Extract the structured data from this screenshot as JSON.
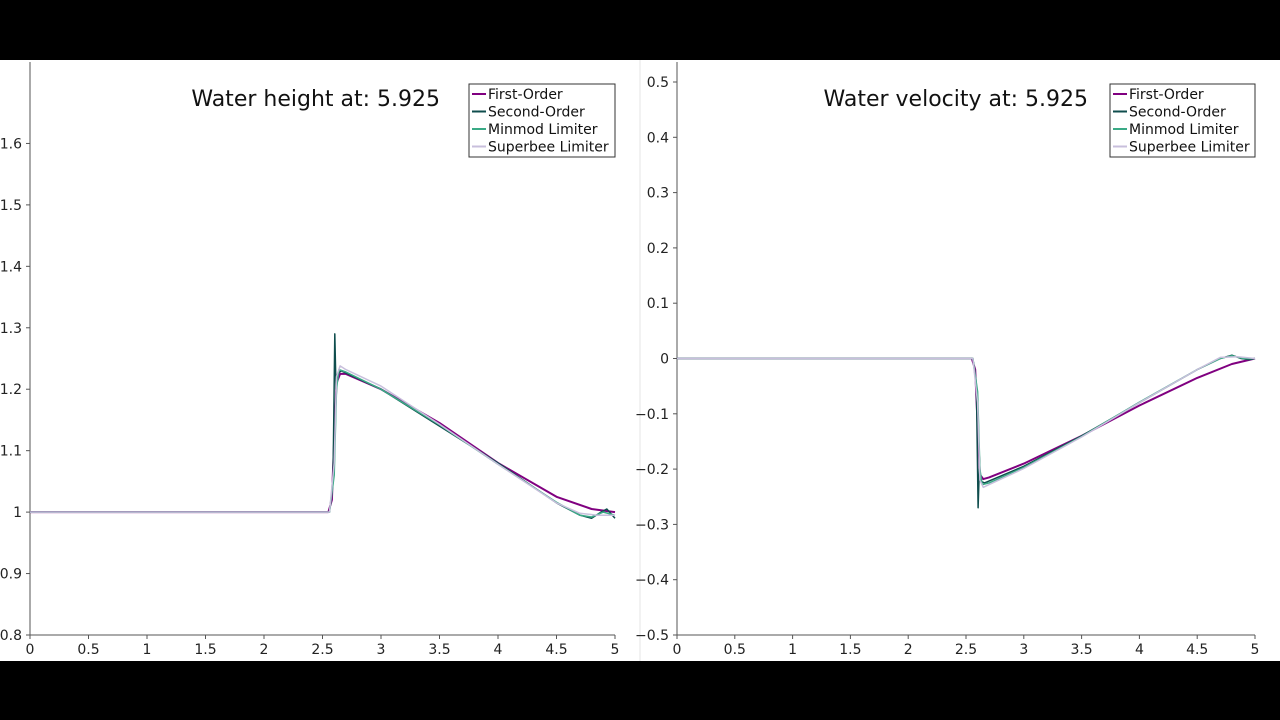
{
  "chart_data": [
    {
      "type": "line",
      "title": "Water height at: 5.925",
      "xlabel": "",
      "ylabel": "",
      "xlim": [
        0,
        5
      ],
      "ylim": [
        0.8,
        1.7
      ],
      "xticks": [
        "0",
        "0.5",
        "1",
        "1.5",
        "2",
        "2.5",
        "3",
        "3.5",
        "4",
        "4.5",
        "5"
      ],
      "yticks": [
        "0.8",
        "0.9",
        "1",
        "1.1",
        "1.2",
        "1.3",
        "1.4",
        "1.5",
        "1.6"
      ],
      "legend_position": "top-right",
      "grid": false,
      "series": [
        {
          "name": "First-Order",
          "color": "#800080",
          "x": [
            0,
            2.5,
            2.55,
            2.58,
            2.6,
            2.62,
            2.65,
            2.7,
            3.0,
            3.5,
            4.0,
            4.5,
            4.8,
            5.0
          ],
          "y": [
            1.0,
            1.0,
            1.0,
            1.02,
            1.12,
            1.21,
            1.225,
            1.225,
            1.2,
            1.145,
            1.08,
            1.025,
            1.005,
            1.0
          ]
        },
        {
          "name": "Second-Order",
          "color": "#0f4d4d",
          "x": [
            0,
            2.5,
            2.56,
            2.59,
            2.605,
            2.615,
            2.63,
            2.66,
            3.0,
            3.5,
            4.0,
            4.5,
            4.7,
            4.8,
            4.88,
            4.93,
            5.0
          ],
          "y": [
            1.0,
            1.0,
            1.0,
            1.05,
            1.29,
            1.2,
            1.225,
            1.23,
            1.2,
            1.14,
            1.08,
            1.015,
            0.995,
            0.99,
            1.0,
            1.005,
            0.99
          ]
        },
        {
          "name": "Minmod Limiter",
          "color": "#3aaa86",
          "x": [
            0,
            2.5,
            2.56,
            2.6,
            2.62,
            2.64,
            2.7,
            3.0,
            3.5,
            4.0,
            4.5,
            4.7,
            4.8,
            4.9,
            5.0
          ],
          "y": [
            1.0,
            1.0,
            1.0,
            1.06,
            1.2,
            1.232,
            1.228,
            1.2,
            1.142,
            1.078,
            1.016,
            0.995,
            0.992,
            1.0,
            0.995
          ]
        },
        {
          "name": "Superbee Limiter",
          "color": "#c8bfdc",
          "x": [
            0,
            2.5,
            2.56,
            2.6,
            2.62,
            2.65,
            2.7,
            3.0,
            3.5,
            4.0,
            4.5,
            4.7,
            4.85,
            5.0
          ],
          "y": [
            1.0,
            1.0,
            1.0,
            1.08,
            1.22,
            1.238,
            1.232,
            1.205,
            1.143,
            1.078,
            1.015,
            0.998,
            0.995,
            0.995
          ]
        }
      ]
    },
    {
      "type": "line",
      "title": "Water velocity at: 5.925",
      "xlabel": "",
      "ylabel": "",
      "xlim": [
        0,
        5
      ],
      "ylim": [
        -0.5,
        0.5
      ],
      "xticks": [
        "0",
        "0.5",
        "1",
        "1.5",
        "2",
        "2.5",
        "3",
        "3.5",
        "4",
        "4.5",
        "5"
      ],
      "yticks": [
        "−0.5",
        "−0.4",
        "−0.3",
        "−0.2",
        "−0.1",
        "0",
        "0.1",
        "0.2",
        "0.3",
        "0.4",
        "0.5"
      ],
      "legend_position": "top-right",
      "grid": false,
      "series": [
        {
          "name": "First-Order",
          "color": "#800080",
          "x": [
            0,
            2.5,
            2.55,
            2.58,
            2.6,
            2.62,
            2.65,
            2.7,
            3.0,
            3.5,
            4.0,
            4.5,
            4.8,
            5.0
          ],
          "y": [
            0.0,
            0.0,
            0.0,
            -0.02,
            -0.12,
            -0.21,
            -0.218,
            -0.215,
            -0.19,
            -0.14,
            -0.085,
            -0.035,
            -0.01,
            0.0
          ]
        },
        {
          "name": "Second-Order",
          "color": "#0f4d4d",
          "x": [
            0,
            2.5,
            2.56,
            2.59,
            2.605,
            2.615,
            2.63,
            2.66,
            3.0,
            3.5,
            4.0,
            4.5,
            4.7,
            4.8,
            4.88,
            4.95,
            5.0
          ],
          "y": [
            0.0,
            0.0,
            0.0,
            -0.05,
            -0.27,
            -0.2,
            -0.222,
            -0.225,
            -0.195,
            -0.14,
            -0.08,
            -0.02,
            0.0,
            0.006,
            0.0,
            -0.002,
            0.0
          ]
        },
        {
          "name": "Minmod Limiter",
          "color": "#3aaa86",
          "x": [
            0,
            2.5,
            2.56,
            2.6,
            2.62,
            2.64,
            2.7,
            3.0,
            3.5,
            4.0,
            4.5,
            4.7,
            4.8,
            4.9,
            5.0
          ],
          "y": [
            0.0,
            0.0,
            0.0,
            -0.06,
            -0.2,
            -0.228,
            -0.225,
            -0.197,
            -0.141,
            -0.079,
            -0.02,
            0.0,
            0.005,
            0.0,
            0.0
          ]
        },
        {
          "name": "Superbee Limiter",
          "color": "#c8bfdc",
          "x": [
            0,
            2.5,
            2.56,
            2.6,
            2.62,
            2.65,
            2.7,
            3.0,
            3.5,
            4.0,
            4.5,
            4.7,
            4.85,
            5.0
          ],
          "y": [
            0.0,
            0.0,
            0.0,
            -0.08,
            -0.22,
            -0.233,
            -0.228,
            -0.199,
            -0.142,
            -0.08,
            -0.02,
            0.002,
            0.003,
            0.0
          ]
        }
      ]
    }
  ]
}
